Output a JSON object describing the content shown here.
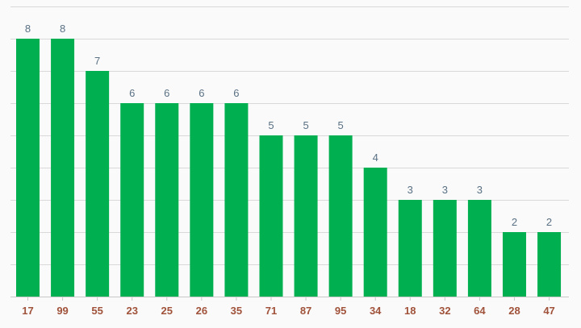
{
  "chart_data": {
    "type": "bar",
    "categories": [
      "17",
      "99",
      "55",
      "23",
      "25",
      "26",
      "35",
      "71",
      "87",
      "95",
      "34",
      "18",
      "32",
      "64",
      "28",
      "47"
    ],
    "values": [
      8,
      8,
      7,
      6,
      6,
      6,
      6,
      5,
      5,
      5,
      4,
      3,
      3,
      3,
      2,
      2
    ],
    "ylim": [
      0,
      9
    ],
    "grid": true,
    "show_value_labels": true,
    "bar_color": "#00b050",
    "value_label_color": "#5a7184",
    "tick_label_color": "#a0523a"
  }
}
